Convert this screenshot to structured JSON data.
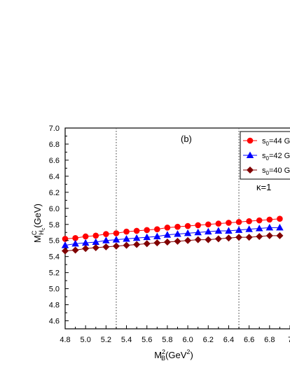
{
  "chart_data": {
    "type": "line",
    "panel_label": "(b)",
    "annotation": "κ=1",
    "xlabel": {
      "base": "M",
      "sup": "2",
      "sub": "B",
      "unit": "(GeV",
      "unit_sup": "2",
      "unit_end": ")"
    },
    "ylabel": {
      "base": "M",
      "sup": "C",
      "sub": "H",
      "subsub": "c",
      "unit": "(GeV)"
    },
    "xlim": [
      4.8,
      7.0
    ],
    "ylim": [
      4.5,
      7.0
    ],
    "xticks": [
      "4.8",
      "5.0",
      "5.2",
      "5.4",
      "5.6",
      "5.8",
      "6.0",
      "6.2",
      "6.4",
      "6.6",
      "6.8",
      "7"
    ],
    "yticks": [
      "4.6",
      "4.8",
      "5.0",
      "5.2",
      "5.4",
      "5.6",
      "5.8",
      "6.0",
      "6.2",
      "6.4",
      "6.6",
      "6.8",
      "7.0"
    ],
    "vlines": [
      5.3,
      6.5
    ],
    "x": [
      4.8,
      4.9,
      5.0,
      5.1,
      5.2,
      5.3,
      5.4,
      5.5,
      5.6,
      5.7,
      5.8,
      5.9,
      6.0,
      6.1,
      6.2,
      6.3,
      6.4,
      6.5,
      6.6,
      6.7,
      6.8,
      6.9
    ],
    "series": [
      {
        "name": "s",
        "name_sub": "0",
        "name_rest": "=44 G",
        "marker": "circle",
        "color": "#ff0000",
        "line_color": "#ff0000",
        "values": [
          5.62,
          5.63,
          5.65,
          5.66,
          5.68,
          5.69,
          5.71,
          5.72,
          5.73,
          5.74,
          5.76,
          5.77,
          5.78,
          5.79,
          5.8,
          5.81,
          5.82,
          5.83,
          5.84,
          5.85,
          5.86,
          5.87
        ]
      },
      {
        "name": "s",
        "name_sub": "0",
        "name_rest": "=42 G",
        "marker": "triangle",
        "color": "#0000ff",
        "line_color": "#0000ff",
        "values": [
          5.54,
          5.56,
          5.57,
          5.58,
          5.6,
          5.61,
          5.62,
          5.63,
          5.64,
          5.65,
          5.67,
          5.68,
          5.69,
          5.7,
          5.71,
          5.72,
          5.72,
          5.73,
          5.74,
          5.75,
          5.76,
          5.76
        ]
      },
      {
        "name": "s",
        "name_sub": "0",
        "name_rest": "=40 G",
        "marker": "diamond",
        "color": "#800000",
        "line_color": "#800000",
        "values": [
          5.47,
          5.48,
          5.5,
          5.51,
          5.52,
          5.53,
          5.54,
          5.55,
          5.56,
          5.57,
          5.58,
          5.59,
          5.6,
          5.61,
          5.61,
          5.62,
          5.63,
          5.64,
          5.64,
          5.65,
          5.66,
          5.66
        ]
      }
    ]
  }
}
